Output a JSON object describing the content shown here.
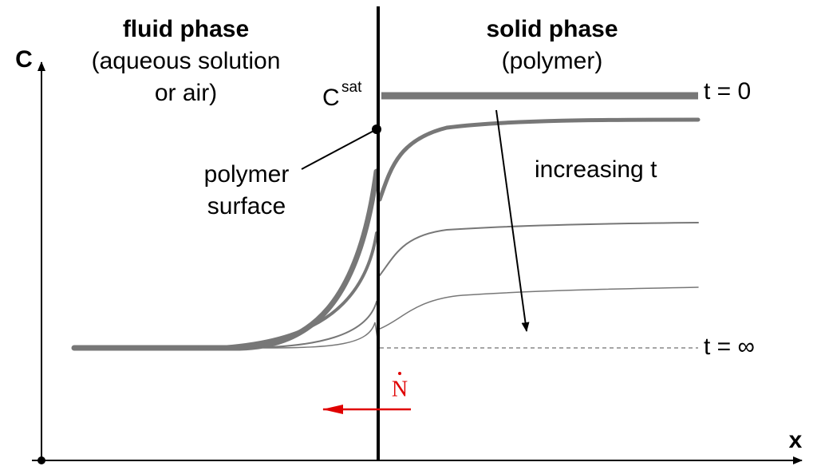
{
  "axes": {
    "y_label": "C",
    "x_label": "x"
  },
  "regions": [
    {
      "title": "fluid phase",
      "subtitle": [
        "(aqueous solution",
        "or air)"
      ]
    },
    {
      "title": "solid phase",
      "subtitle": [
        "(polymer)"
      ]
    }
  ],
  "labels": {
    "c_sat": {
      "base": "C",
      "sup": "sat"
    },
    "t_zero": "t = 0",
    "increasing": "increasing t",
    "t_infinity": "t = ∞",
    "surface": [
      "polymer",
      "surface"
    ],
    "flux": "N"
  }
}
